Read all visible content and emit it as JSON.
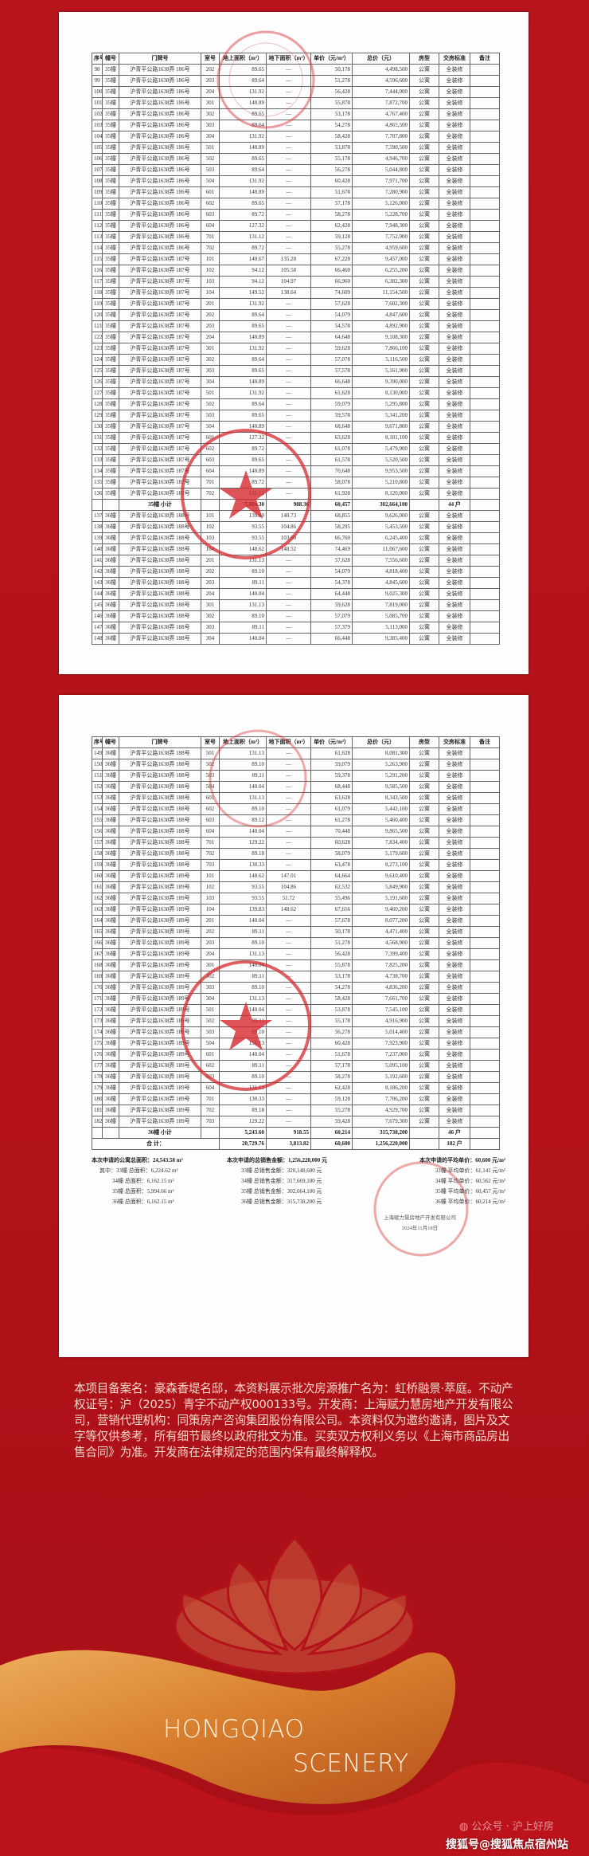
{
  "columns": [
    "序号",
    "幢号",
    "门牌号",
    "室号",
    "地上面积（m²）",
    "地下面积（m²）",
    "单价（元/m²）",
    "总价（元）",
    "房型",
    "交房标准",
    "备注"
  ],
  "page1_rows": [
    [
      "98",
      "35幢",
      "沪青平公路1638弄 186号",
      "202",
      "89.65",
      "—",
      "50,178",
      "4,498,500",
      "公寓",
      "全装修",
      ""
    ],
    [
      "99",
      "35幢",
      "沪青平公路1638弄 186号",
      "203",
      "89.64",
      "—",
      "51,278",
      "4,596,600",
      "公寓",
      "全装修",
      ""
    ],
    [
      "100",
      "35幢",
      "沪青平公路1638弄 186号",
      "204",
      "131.92",
      "—",
      "56,428",
      "7,444,000",
      "公寓",
      "全装修",
      ""
    ],
    [
      "101",
      "35幢",
      "沪青平公路1638弄 186号",
      "301",
      "140.89",
      "—",
      "55,878",
      "7,872,700",
      "公寓",
      "全装修",
      ""
    ],
    [
      "102",
      "35幢",
      "沪青平公路1638弄 186号",
      "302",
      "89.65",
      "—",
      "53,178",
      "4,767,400",
      "公寓",
      "全装修",
      ""
    ],
    [
      "103",
      "35幢",
      "沪青平公路1638弄 186号",
      "303",
      "89.64",
      "—",
      "54,278",
      "4,865,500",
      "公寓",
      "全装修",
      ""
    ],
    [
      "104",
      "35幢",
      "沪青平公路1638弄 186号",
      "304",
      "131.92",
      "—",
      "58,428",
      "7,707,800",
      "公寓",
      "全装修",
      ""
    ],
    [
      "105",
      "35幢",
      "沪青平公路1638弄 186号",
      "501",
      "140.89",
      "—",
      "53,878",
      "7,590,500",
      "公寓",
      "全装修",
      ""
    ],
    [
      "106",
      "35幢",
      "沪青平公路1638弄 186号",
      "502",
      "89.65",
      "—",
      "55,178",
      "4,946,700",
      "公寓",
      "全装修",
      ""
    ],
    [
      "107",
      "35幢",
      "沪青平公路1638弄 186号",
      "503",
      "89.64",
      "—",
      "56,278",
      "5,044,800",
      "公寓",
      "全装修",
      ""
    ],
    [
      "108",
      "35幢",
      "沪青平公路1638弄 186号",
      "504",
      "131.92",
      "—",
      "60,428",
      "7,971,700",
      "公寓",
      "全装修",
      ""
    ],
    [
      "109",
      "35幢",
      "沪青平公路1638弄 186号",
      "601",
      "140.89",
      "—",
      "51,678",
      "7,280,900",
      "公寓",
      "全装修",
      ""
    ],
    [
      "110",
      "35幢",
      "沪青平公路1638弄 186号",
      "602",
      "89.65",
      "—",
      "57,178",
      "5,126,000",
      "公寓",
      "全装修",
      ""
    ],
    [
      "111",
      "35幢",
      "沪青平公路1638弄 186号",
      "603",
      "89.72",
      "—",
      "58,278",
      "5,228,700",
      "公寓",
      "全装修",
      ""
    ],
    [
      "112",
      "35幢",
      "沪青平公路1638弄 186号",
      "604",
      "127.32",
      "—",
      "62,428",
      "7,948,300",
      "公寓",
      "全装修",
      ""
    ],
    [
      "113",
      "35幢",
      "沪青平公路1638弄 186号",
      "701",
      "131.12",
      "—",
      "59,128",
      "7,752,900",
      "公寓",
      "全装修",
      ""
    ],
    [
      "114",
      "35幢",
      "沪青平公路1638弄 186号",
      "702",
      "89.72",
      "—",
      "55,278",
      "4,959,600",
      "公寓",
      "全装修",
      ""
    ],
    [
      "115",
      "35幢",
      "沪青平公路1638弄 187号",
      "101",
      "140.67",
      "135.28",
      "67,228",
      "9,457,000",
      "公寓",
      "全装修",
      ""
    ],
    [
      "116",
      "35幢",
      "沪青平公路1638弄 187号",
      "102",
      "94.12",
      "105.58",
      "66,460",
      "6,255,200",
      "公寓",
      "全装修",
      ""
    ],
    [
      "117",
      "35幢",
      "沪青平公路1638弄 187号",
      "103",
      "94.12",
      "104.97",
      "66,960",
      "6,302,300",
      "公寓",
      "全装修",
      ""
    ],
    [
      "118",
      "35幢",
      "沪青平公路1638弄 187号",
      "104",
      "149.52",
      "138.64",
      "74,609",
      "11,154,500",
      "公寓",
      "全装修",
      ""
    ],
    [
      "119",
      "35幢",
      "沪青平公路1638弄 187号",
      "201",
      "131.92",
      "—",
      "57,628",
      "7,602,300",
      "公寓",
      "全装修",
      ""
    ],
    [
      "120",
      "35幢",
      "沪青平公路1638弄 187号",
      "202",
      "89.64",
      "—",
      "54,079",
      "4,847,600",
      "公寓",
      "全装修",
      ""
    ],
    [
      "121",
      "35幢",
      "沪青平公路1638弄 187号",
      "203",
      "89.65",
      "—",
      "54,578",
      "4,892,900",
      "公寓",
      "全装修",
      ""
    ],
    [
      "122",
      "35幢",
      "沪青平公路1638弄 187号",
      "204",
      "140.89",
      "—",
      "64,648",
      "9,108,300",
      "公寓",
      "全装修",
      ""
    ],
    [
      "123",
      "35幢",
      "沪青平公路1638弄 187号",
      "301",
      "131.92",
      "—",
      "59,628",
      "7,866,100",
      "公寓",
      "全装修",
      ""
    ],
    [
      "124",
      "35幢",
      "沪青平公路1638弄 187号",
      "302",
      "89.64",
      "—",
      "57,078",
      "5,116,500",
      "公寓",
      "全装修",
      ""
    ],
    [
      "125",
      "35幢",
      "沪青平公路1638弄 187号",
      "303",
      "89.65",
      "—",
      "57,578",
      "5,161,900",
      "公寓",
      "全装修",
      ""
    ],
    [
      "126",
      "35幢",
      "沪青平公路1638弄 187号",
      "304",
      "140.89",
      "—",
      "66,648",
      "9,390,000",
      "公寓",
      "全装修",
      ""
    ],
    [
      "127",
      "35幢",
      "沪青平公路1638弄 187号",
      "501",
      "131.92",
      "—",
      "61,628",
      "8,130,000",
      "公寓",
      "全装修",
      ""
    ],
    [
      "128",
      "35幢",
      "沪青平公路1638弄 187号",
      "502",
      "89.64",
      "—",
      "59,079",
      "5,295,800",
      "公寓",
      "全装修",
      ""
    ],
    [
      "129",
      "35幢",
      "沪青平公路1638弄 187号",
      "503",
      "89.65",
      "—",
      "59,578",
      "5,341,200",
      "公寓",
      "全装修",
      ""
    ],
    [
      "130",
      "35幢",
      "沪青平公路1638弄 187号",
      "504",
      "140.89",
      "—",
      "68,648",
      "9,671,800",
      "公寓",
      "全装修",
      ""
    ],
    [
      "131",
      "35幢",
      "沪青平公路1638弄 187号",
      "601",
      "127.32",
      "—",
      "63,628",
      "8,101,100",
      "公寓",
      "全装修",
      ""
    ],
    [
      "132",
      "35幢",
      "沪青平公路1638弄 187号",
      "602",
      "89.72",
      "—",
      "61,078",
      "5,479,900",
      "公寓",
      "全装修",
      ""
    ],
    [
      "133",
      "35幢",
      "沪青平公路1638弄 187号",
      "603",
      "89.65",
      "—",
      "61,578",
      "5,520,500",
      "公寓",
      "全装修",
      ""
    ],
    [
      "134",
      "35幢",
      "沪青平公路1638弄 187号",
      "604",
      "140.89",
      "—",
      "70,648",
      "9,953,500",
      "公寓",
      "全装修",
      ""
    ],
    [
      "135",
      "35幢",
      "沪青平公路1638弄 187号",
      "701",
      "89.72",
      "—",
      "58,078",
      "5,210,800",
      "公寓",
      "全装修",
      ""
    ],
    [
      "136",
      "35幢",
      "沪青平公路1638弄 187号",
      "702",
      "131.12",
      "—",
      "61,928",
      "8,120,000",
      "公寓",
      "全装修",
      ""
    ],
    {
      "subtotal": "35幢 小计",
      "above": "5,006.30",
      "below": "988.36",
      "unit": "60,457",
      "total": "302,664,100",
      "count": "44 户"
    },
    [
      "137",
      "36幢",
      "沪青平公路1638弄 188号",
      "101",
      "139.80",
      "140.73",
      "68,855",
      "9,626,000",
      "公寓",
      "全装修",
      ""
    ],
    [
      "138",
      "36幢",
      "沪青平公路1638弄 188号",
      "102",
      "93.55",
      "104.86",
      "58,295",
      "5,453,500",
      "公寓",
      "全装修",
      ""
    ],
    [
      "139",
      "36幢",
      "沪青平公路1638弄 188号",
      "103",
      "93.55",
      "103.60",
      "66,760",
      "6,245,400",
      "公寓",
      "全装修",
      ""
    ],
    [
      "140",
      "36幢",
      "沪青平公路1638弄 188号",
      "104",
      "148.62",
      "148.52",
      "74,469",
      "11,067,600",
      "公寓",
      "全装修",
      ""
    ],
    [
      "141",
      "36幢",
      "沪青平公路1638弄 188号",
      "201",
      "131.13",
      "—",
      "57,628",
      "7,556,600",
      "公寓",
      "全装修",
      ""
    ],
    [
      "142",
      "36幢",
      "沪青平公路1638弄 188号",
      "202",
      "89.10",
      "—",
      "54,079",
      "4,818,400",
      "公寓",
      "全装修",
      ""
    ],
    [
      "143",
      "36幢",
      "沪青平公路1638弄 188号",
      "203",
      "89.11",
      "—",
      "54,378",
      "4,845,600",
      "公寓",
      "全装修",
      ""
    ],
    [
      "144",
      "36幢",
      "沪青平公路1638弄 188号",
      "204",
      "140.04",
      "—",
      "64,448",
      "9,025,300",
      "公寓",
      "全装修",
      ""
    ],
    [
      "145",
      "36幢",
      "沪青平公路1638弄 188号",
      "301",
      "131.13",
      "—",
      "59,628",
      "7,819,000",
      "公寓",
      "全装修",
      ""
    ],
    [
      "146",
      "36幢",
      "沪青平公路1638弄 188号",
      "302",
      "89.10",
      "—",
      "57,079",
      "5,085,700",
      "公寓",
      "全装修",
      ""
    ],
    [
      "147",
      "36幢",
      "沪青平公路1638弄 188号",
      "303",
      "89.11",
      "—",
      "57,379",
      "5,113,000",
      "公寓",
      "全装修",
      ""
    ],
    [
      "148",
      "36幢",
      "沪青平公路1638弄 188号",
      "304",
      "140.04",
      "—",
      "66,448",
      "9,305,400",
      "公寓",
      "全装修",
      ""
    ]
  ],
  "page2_rows": [
    [
      "149",
      "36幢",
      "沪青平公路1638弄 188号",
      "501",
      "131.13",
      "—",
      "61,628",
      "8,081,300",
      "公寓",
      "全装修",
      ""
    ],
    [
      "150",
      "36幢",
      "沪青平公路1638弄 188号",
      "502",
      "89.10",
      "—",
      "59,079",
      "5,263,900",
      "公寓",
      "全装修",
      ""
    ],
    [
      "151",
      "36幢",
      "沪青平公路1638弄 188号",
      "503",
      "89.11",
      "—",
      "59,378",
      "5,291,200",
      "公寓",
      "全装修",
      ""
    ],
    [
      "152",
      "36幢",
      "沪青平公路1638弄 188号",
      "504",
      "140.04",
      "—",
      "68,448",
      "9,585,500",
      "公寓",
      "全装修",
      ""
    ],
    [
      "153",
      "36幢",
      "沪青平公路1638弄 188号",
      "601",
      "131.13",
      "—",
      "63,628",
      "8,343,500",
      "公寓",
      "全装修",
      ""
    ],
    [
      "154",
      "36幢",
      "沪青平公路1638弄 188号",
      "602",
      "89.10",
      "—",
      "61,079",
      "5,442,100",
      "公寓",
      "全装修",
      ""
    ],
    [
      "155",
      "36幢",
      "沪青平公路1638弄 188号",
      "603",
      "89.12",
      "—",
      "61,278",
      "5,460,400",
      "公寓",
      "全装修",
      ""
    ],
    [
      "156",
      "36幢",
      "沪青平公路1638弄 188号",
      "604",
      "140.04",
      "—",
      "70,448",
      "9,865,500",
      "公寓",
      "全装修",
      ""
    ],
    [
      "157",
      "36幢",
      "沪青平公路1638弄 188号",
      "701",
      "129.22",
      "—",
      "60,628",
      "7,834,400",
      "公寓",
      "全装修",
      ""
    ],
    [
      "158",
      "36幢",
      "沪青平公路1638弄 188号",
      "702",
      "89.18",
      "—",
      "58,079",
      "5,179,600",
      "公寓",
      "全装修",
      ""
    ],
    [
      "159",
      "36幢",
      "沪青平公路1638弄 188号",
      "703",
      "130.33",
      "—",
      "63,478",
      "8,273,100",
      "公寓",
      "全装修",
      ""
    ],
    [
      "160",
      "36幢",
      "沪青平公路1638弄 189号",
      "101",
      "148.62",
      "147.01",
      "64,664",
      "9,610,400",
      "公寓",
      "全装修",
      ""
    ],
    [
      "161",
      "36幢",
      "沪青平公路1638弄 189号",
      "102",
      "93.55",
      "104.86",
      "62,532",
      "5,849,900",
      "公寓",
      "全装修",
      ""
    ],
    [
      "162",
      "36幢",
      "沪青平公路1638弄 189号",
      "103",
      "93.55",
      "51.72",
      "55,496",
      "5,191,600",
      "公寓",
      "全装修",
      ""
    ],
    [
      "163",
      "36幢",
      "沪青平公路1638弄 189号",
      "104",
      "139.83",
      "148.62",
      "67,656",
      "9,460,200",
      "公寓",
      "全装修",
      ""
    ],
    [
      "164",
      "36幢",
      "沪青平公路1638弄 189号",
      "201",
      "140.04",
      "—",
      "57,678",
      "8,077,200",
      "公寓",
      "全装修",
      ""
    ],
    [
      "165",
      "36幢",
      "沪青平公路1638弄 189号",
      "202",
      "89.11",
      "—",
      "50,178",
      "4,471,400",
      "公寓",
      "全装修",
      ""
    ],
    [
      "166",
      "36幢",
      "沪青平公路1638弄 189号",
      "203",
      "89.10",
      "—",
      "51,278",
      "4,568,900",
      "公寓",
      "全装修",
      ""
    ],
    [
      "167",
      "36幢",
      "沪青平公路1638弄 189号",
      "204",
      "131.13",
      "—",
      "56,428",
      "7,399,400",
      "公寓",
      "全装修",
      ""
    ],
    [
      "168",
      "36幢",
      "沪青平公路1638弄 189号",
      "301",
      "140.04",
      "—",
      "55,878",
      "7,825,200",
      "公寓",
      "全装修",
      ""
    ],
    [
      "169",
      "36幢",
      "沪青平公路1638弄 189号",
      "302",
      "89.11",
      "—",
      "53,178",
      "4,738,700",
      "公寓",
      "全装修",
      ""
    ],
    [
      "170",
      "36幢",
      "沪青平公路1638弄 189号",
      "303",
      "89.10",
      "—",
      "54,278",
      "4,836,200",
      "公寓",
      "全装修",
      ""
    ],
    [
      "171",
      "36幢",
      "沪青平公路1638弄 189号",
      "304",
      "131.13",
      "—",
      "58,428",
      "7,661,700",
      "公寓",
      "全装修",
      ""
    ],
    [
      "172",
      "36幢",
      "沪青平公路1638弄 189号",
      "501",
      "140.04",
      "—",
      "53,878",
      "7,545,100",
      "公寓",
      "全装修",
      ""
    ],
    [
      "173",
      "36幢",
      "沪青平公路1638弄 189号",
      "502",
      "89.11",
      "—",
      "55,178",
      "4,916,900",
      "公寓",
      "全装修",
      ""
    ],
    [
      "174",
      "36幢",
      "沪青平公路1638弄 189号",
      "503",
      "89.10",
      "—",
      "56,278",
      "5,014,400",
      "公寓",
      "全装修",
      ""
    ],
    [
      "175",
      "36幢",
      "沪青平公路1638弄 189号",
      "504",
      "131.13",
      "—",
      "60,428",
      "7,923,900",
      "公寓",
      "全装修",
      ""
    ],
    [
      "176",
      "36幢",
      "沪青平公路1638弄 189号",
      "601",
      "140.04",
      "—",
      "51,678",
      "7,237,000",
      "公寓",
      "全装修",
      ""
    ],
    [
      "177",
      "36幢",
      "沪青平公路1638弄 189号",
      "602",
      "89.11",
      "—",
      "57,178",
      "5,095,100",
      "公寓",
      "全装修",
      ""
    ],
    [
      "178",
      "36幢",
      "沪青平公路1638弄 189号",
      "603",
      "89.10",
      "—",
      "58,278",
      "5,192,600",
      "公寓",
      "全装修",
      ""
    ],
    [
      "179",
      "36幢",
      "沪青平公路1638弄 189号",
      "604",
      "131.13",
      "—",
      "62,428",
      "8,186,200",
      "公寓",
      "全装修",
      ""
    ],
    [
      "180",
      "36幢",
      "沪青平公路1638弄 189号",
      "701",
      "130.33",
      "—",
      "59,128",
      "7,706,200",
      "公寓",
      "全装修",
      ""
    ],
    [
      "181",
      "36幢",
      "沪青平公路1638弄 189号",
      "702",
      "89.18",
      "—",
      "55,278",
      "4,929,700",
      "公寓",
      "全装修",
      ""
    ],
    [
      "182",
      "36幢",
      "沪青平公路1638弄 189号",
      "703",
      "129.22",
      "—",
      "59,428",
      "7,679,300",
      "公寓",
      "全装修",
      ""
    ],
    {
      "subtotal": "36幢 小计",
      "above": "5,243.60",
      "below": "918.55",
      "unit": "60,214",
      "total": "315,738,200",
      "count": "46 户"
    },
    {
      "grandtotal": "合 计：",
      "above": "20,729.76",
      "below": "3,813.82",
      "unit": "60,600",
      "total": "1,256,220,000",
      "count": "182 户"
    }
  ],
  "summary": {
    "area": {
      "heading": "本次申请的公寓总面积：24,543.58 m²",
      "lines": [
        "其中：33幢 总面积：6,224.62 m²",
        "34幢 总面积：6,162.15 m²",
        "35幢 总面积：5,994.66 m²",
        "36幢 总面积：6,162.15 m²"
      ]
    },
    "sales": {
      "heading": "本次申请的总销售金额：1,256,220,000 元",
      "lines": [
        "33幢 总销售金额：320,148,600 元",
        "34幢 总销售金额：317,669,100 元",
        "35幢 总销售金额：302,664,100 元",
        "36幢 总销售金额：315,738,200 元"
      ]
    },
    "price": {
      "heading": "本次申请的平均单价：60,600 元/m²",
      "lines": [
        "33幢 平均单价：61,141 元/m²",
        "34幢 平均单价：60,562 元/m²",
        "35幢 平均单价：60,457 元/m²",
        "36幢 平均单价：60,214 元/m²"
      ]
    }
  },
  "company": {
    "name": "上海赋力慧房地产开发有限公司",
    "date": "2024年11月18日"
  },
  "disclaimer": "本项目备案名：豪森香堤名邸，本资料展示批次房源推广名为：虹桥融景·萃庭。不动产权证号：沪（2025）青字不动产权000133号。开发商：上海赋力慧房地产开发有限公司，营销代理机构：同策房产咨询集团股份有限公司。本资料仅为邀约邀请，图片及文字等仅供参考，所有细节最终以政府批文为准。买卖双方权利义务以《上海市商品房出售合同》为准。开发商在法律规定的范围内保有最终解释权。",
  "brand": {
    "line1": "HONGQIAO",
    "line2": "SCENERY"
  },
  "watermarks": {
    "wechat": "公众号 · 沪上好房",
    "sohu": "搜狐号@搜狐焦点宿州站"
  },
  "icons": {
    "wechat": "wechat-icon",
    "seal": "red-official-seal",
    "lotus": "lotus-emblem"
  },
  "colors": {
    "background": "#b3121a",
    "seal": "#d4282e",
    "ribbon": "#e0913a",
    "text_light": "#f4dccd"
  }
}
